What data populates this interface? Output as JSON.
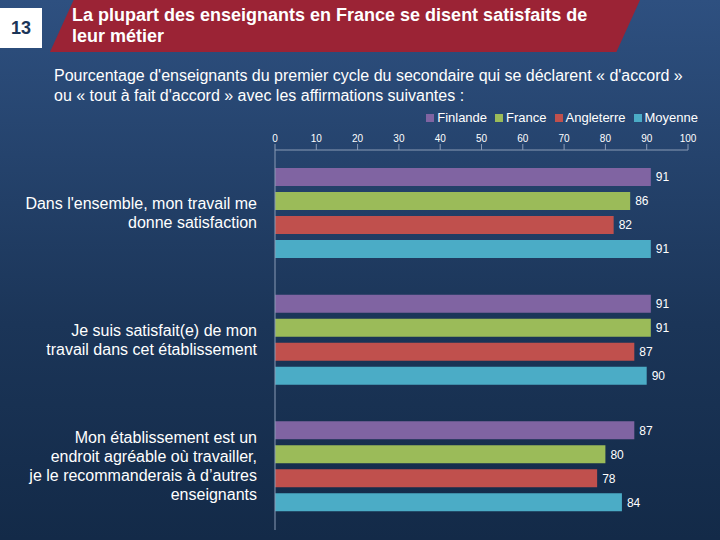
{
  "page_number": "13",
  "chart_data": {
    "type": "bar",
    "orientation": "horizontal",
    "title": "La plupart des enseignants en France se disent satisfaits de leur métier",
    "subtitle": "Pourcentage d'enseignants du premier cycle du secondaire qui se déclarent « d'accord » ou « tout à fait d'accord » avec les affirmations suivantes :",
    "categories": [
      "Dans l'ensemble, mon travail me donne satisfaction",
      "Je suis satisfait(e) de mon travail dans cet établissement",
      "Mon établissement est un endroit agréable où travailler, je le recommanderais à d’autres enseignants"
    ],
    "series": [
      {
        "name": "Finlande",
        "color": "#8064a2",
        "values": [
          91,
          91,
          87
        ]
      },
      {
        "name": "France",
        "color": "#9bbb59",
        "values": [
          86,
          91,
          80
        ]
      },
      {
        "name": "Angleterre",
        "color": "#c0504d",
        "values": [
          82,
          87,
          78
        ]
      },
      {
        "name": "Moyenne",
        "color": "#4bacc6",
        "values": [
          91,
          90,
          84
        ]
      }
    ],
    "xlim": [
      0,
      100
    ],
    "xticks": [
      0,
      10,
      20,
      30,
      40,
      50,
      60,
      70,
      80,
      90,
      100
    ],
    "data_labels": true,
    "legend": "top-right",
    "grid": false
  }
}
